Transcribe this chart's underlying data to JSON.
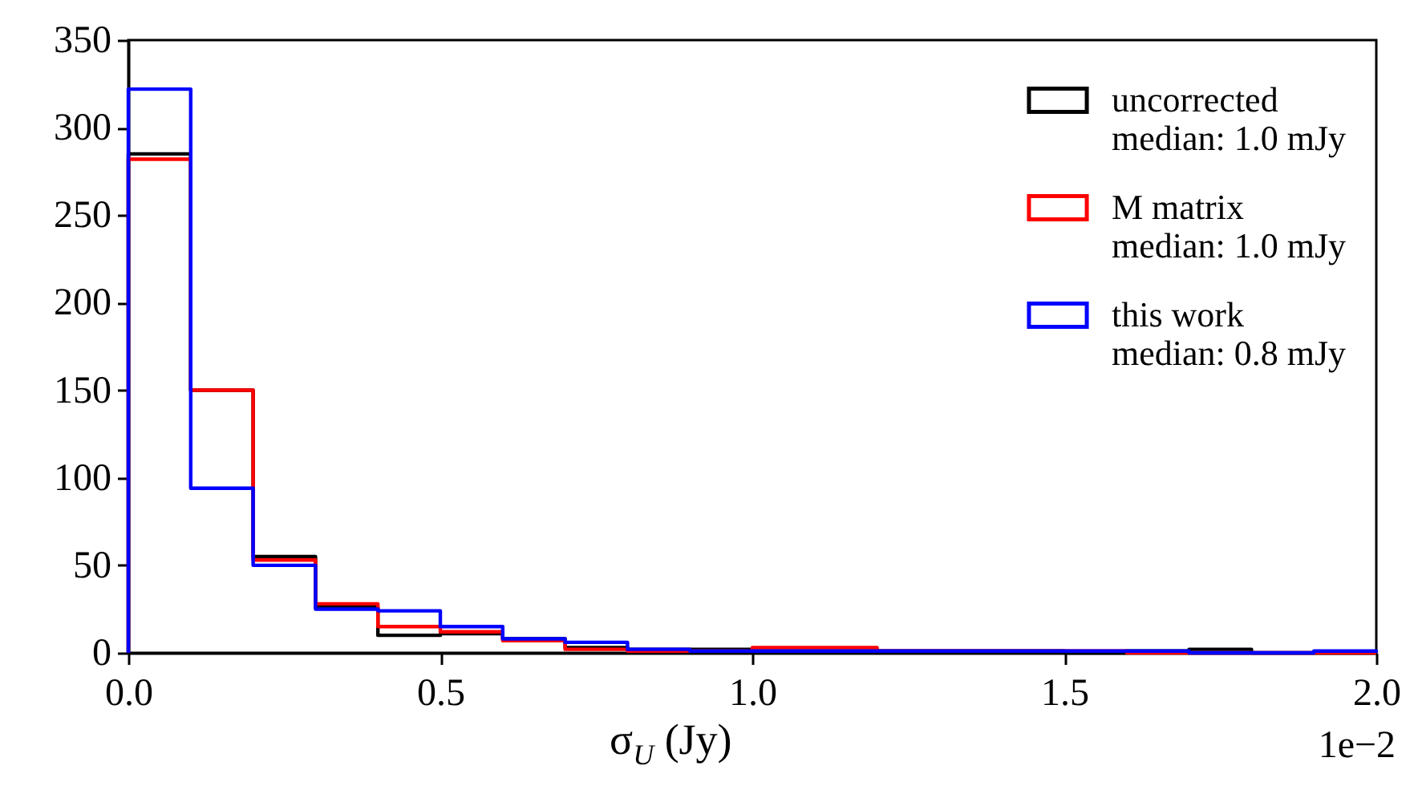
{
  "chart_data": {
    "type": "histogram",
    "xlabel": "σ$_{U}$ (Jy)",
    "annotations": [
      "1e−2"
    ],
    "bins": [
      0,
      0.1,
      0.2,
      0.3,
      0.4,
      0.5,
      0.6,
      0.7,
      0.8,
      0.9,
      1.0,
      1.1,
      1.2,
      1.3,
      1.4,
      1.5,
      1.6,
      1.7,
      1.8,
      1.9,
      2.0
    ],
    "series": [
      {
        "name": "uncorrected\nmedian: 1.0 mJy",
        "color": "#000000",
        "values": [
          285,
          150,
          55,
          26,
          10,
          11,
          8,
          3,
          2,
          2,
          1,
          1,
          1,
          1,
          1,
          0,
          1,
          2,
          0,
          0
        ]
      },
      {
        "name": "M matrix\nmedian: 1.0 mJy",
        "color": "#ff0000",
        "values": [
          282,
          150,
          53,
          28,
          15,
          12,
          7,
          2,
          1,
          1,
          3,
          3,
          1,
          1,
          1,
          1,
          0,
          0,
          0,
          0
        ]
      },
      {
        "name": "this work\nmedian: 0.8 mJy",
        "color": "#0000ff",
        "values": [
          322,
          94,
          50,
          25,
          24,
          15,
          8,
          6,
          2,
          1,
          1,
          1,
          1,
          1,
          1,
          1,
          1,
          0,
          0,
          1
        ]
      }
    ],
    "xlim": [
      0,
      2
    ],
    "xticks": [
      {
        "value": 0,
        "label": "0.0"
      },
      0.5,
      {
        "value": 1,
        "label": "1.0"
      },
      1.5,
      {
        "value": 2,
        "label": "2.0"
      }
    ],
    "ylim": [
      0,
      350
    ],
    "yticks": [
      0,
      50,
      100,
      150,
      200,
      250,
      300,
      350
    ],
    "legend": "top right"
  }
}
